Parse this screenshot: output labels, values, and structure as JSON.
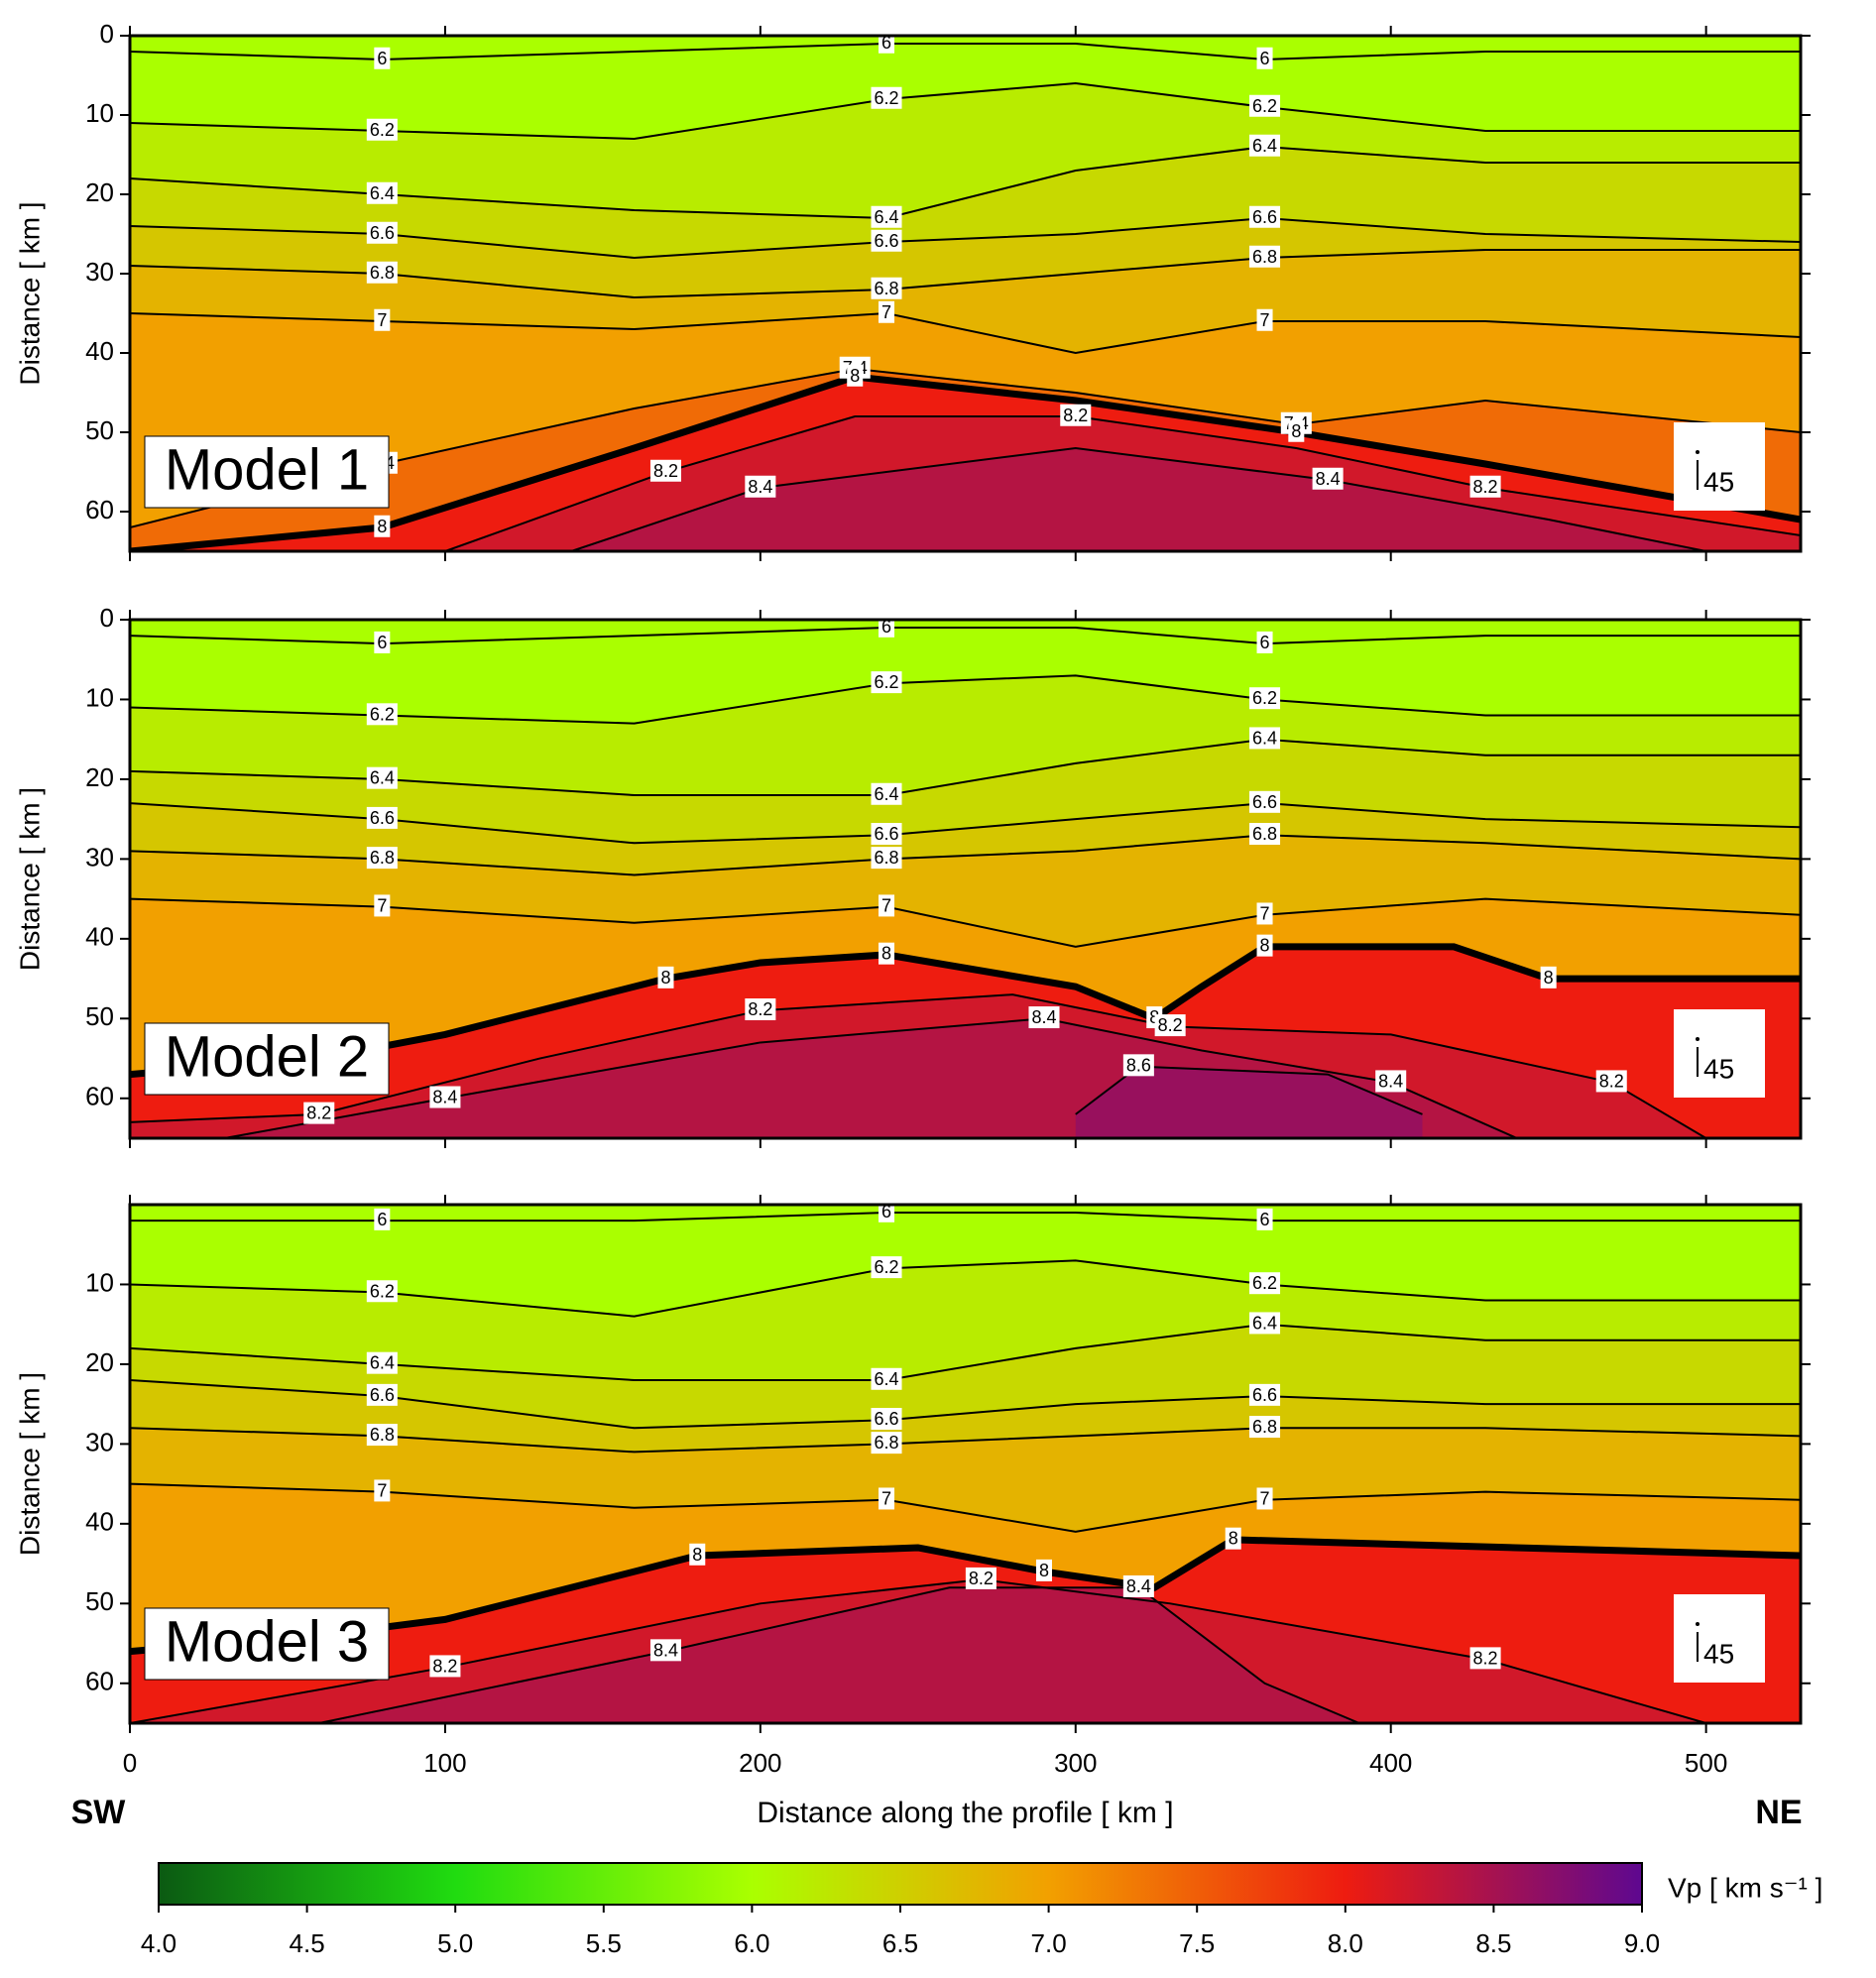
{
  "chart_data": [
    {
      "type": "contour",
      "model_label": "Model 1",
      "y_label": "Distance [ km ]",
      "inset_label": 45,
      "xlim": [
        0,
        530
      ],
      "xticks": [
        0,
        100,
        200,
        300,
        400,
        500
      ],
      "show_xtick_labels": false,
      "ylim": [
        0,
        65
      ],
      "yticks": [
        0,
        10,
        20,
        30,
        40,
        50,
        60
      ],
      "y_reversed": true,
      "contours": [
        {
          "level": 6,
          "x": [
            0,
            80,
            160,
            240,
            300,
            360,
            430,
            530
          ],
          "y": [
            2,
            3,
            2,
            1,
            1,
            3,
            2,
            2
          ]
        },
        {
          "level": 6.2,
          "x": [
            0,
            80,
            160,
            240,
            300,
            360,
            430,
            530
          ],
          "y": [
            11,
            12,
            13,
            8,
            6,
            9,
            12,
            12
          ]
        },
        {
          "level": 6.4,
          "x": [
            0,
            80,
            160,
            240,
            300,
            360,
            430,
            530
          ],
          "y": [
            18,
            20,
            22,
            23,
            17,
            14,
            16,
            16
          ]
        },
        {
          "level": 6.6,
          "x": [
            0,
            80,
            160,
            240,
            300,
            360,
            430,
            530
          ],
          "y": [
            24,
            25,
            28,
            26,
            25,
            23,
            25,
            26
          ]
        },
        {
          "level": 6.8,
          "x": [
            0,
            80,
            160,
            240,
            300,
            360,
            430,
            530
          ],
          "y": [
            29,
            30,
            33,
            32,
            30,
            28,
            27,
            27
          ]
        },
        {
          "level": 7,
          "x": [
            0,
            80,
            160,
            240,
            300,
            360,
            430,
            530
          ],
          "y": [
            35,
            36,
            37,
            35,
            40,
            36,
            36,
            38
          ]
        },
        {
          "level": 7.4,
          "x": [
            0,
            80,
            160,
            230,
            300,
            370,
            430,
            530
          ],
          "y": [
            62,
            54,
            47,
            42,
            45,
            49,
            46,
            50
          ]
        },
        {
          "level": 8,
          "boundary": true,
          "x": [
            0,
            80,
            160,
            230,
            300,
            370,
            430,
            530
          ],
          "y": [
            65,
            62,
            52,
            43,
            46,
            50,
            54,
            61
          ]
        },
        {
          "level": 8.2,
          "x": [
            100,
            170,
            230,
            300,
            370,
            430,
            530
          ],
          "y": [
            65,
            55,
            48,
            48,
            52,
            57,
            63
          ]
        },
        {
          "level": 8.4,
          "x": [
            140,
            200,
            300,
            380,
            450,
            500
          ],
          "y": [
            65,
            57,
            52,
            56,
            61,
            65
          ]
        }
      ]
    },
    {
      "type": "contour",
      "model_label": "Model 2",
      "y_label": "Distance [ km ]",
      "inset_label": 45,
      "xlim": [
        0,
        530
      ],
      "xticks": [
        0,
        100,
        200,
        300,
        400,
        500
      ],
      "show_xtick_labels": false,
      "ylim": [
        0,
        65
      ],
      "yticks": [
        0,
        10,
        20,
        30,
        40,
        50,
        60
      ],
      "y_reversed": true,
      "contours": [
        {
          "level": 6,
          "x": [
            0,
            80,
            160,
            240,
            300,
            360,
            430,
            530
          ],
          "y": [
            2,
            3,
            2,
            1,
            1,
            3,
            2,
            2
          ]
        },
        {
          "level": 6.2,
          "x": [
            0,
            80,
            160,
            240,
            300,
            360,
            430,
            530
          ],
          "y": [
            11,
            12,
            13,
            8,
            7,
            10,
            12,
            12
          ]
        },
        {
          "level": 6.4,
          "x": [
            0,
            80,
            160,
            240,
            300,
            360,
            430,
            530
          ],
          "y": [
            19,
            20,
            22,
            22,
            18,
            15,
            17,
            17
          ]
        },
        {
          "level": 6.6,
          "x": [
            0,
            80,
            160,
            240,
            300,
            360,
            430,
            530
          ],
          "y": [
            23,
            25,
            28,
            27,
            25,
            23,
            25,
            26
          ]
        },
        {
          "level": 6.8,
          "x": [
            0,
            80,
            160,
            240,
            300,
            360,
            430,
            530
          ],
          "y": [
            29,
            30,
            32,
            30,
            29,
            27,
            28,
            30
          ]
        },
        {
          "level": 7,
          "x": [
            0,
            80,
            160,
            240,
            300,
            360,
            430,
            530
          ],
          "y": [
            35,
            36,
            38,
            36,
            41,
            37,
            35,
            37
          ]
        },
        {
          "level": 8,
          "boundary": true,
          "x": [
            0,
            60,
            100,
            170,
            200,
            240,
            300,
            325,
            340,
            360,
            420,
            450,
            530
          ],
          "y": [
            57,
            55,
            52,
            45,
            43,
            42,
            46,
            50,
            46,
            41,
            41,
            45,
            45
          ]
        },
        {
          "level": 8.2,
          "x": [
            0,
            60,
            130,
            200,
            280,
            330,
            400,
            470,
            500,
            530
          ],
          "y": [
            63,
            62,
            55,
            49,
            47,
            51,
            52,
            58,
            65,
            66
          ]
        },
        {
          "level": 8.4,
          "x": [
            30,
            100,
            200,
            290,
            340,
            400,
            440
          ],
          "y": [
            65,
            60,
            53,
            50,
            54,
            58,
            65
          ]
        },
        {
          "level": 8.6,
          "x": [
            300,
            320,
            380,
            410
          ],
          "y": [
            62,
            56,
            57,
            62
          ]
        }
      ]
    },
    {
      "type": "contour",
      "model_label": "Model 3",
      "y_label": "Distance [ km ]",
      "inset_label": 45,
      "xlim": [
        0,
        530
      ],
      "xticks": [
        0,
        100,
        200,
        300,
        400,
        500
      ],
      "show_xtick_labels": true,
      "ylim": [
        0,
        65
      ],
      "yticks": [
        10,
        20,
        30,
        40,
        50,
        60
      ],
      "y_reversed": true,
      "contours": [
        {
          "level": 6,
          "x": [
            0,
            80,
            160,
            240,
            300,
            360,
            430,
            530
          ],
          "y": [
            2,
            2,
            2,
            1,
            1,
            2,
            2,
            2
          ]
        },
        {
          "level": 6.2,
          "x": [
            0,
            80,
            160,
            240,
            300,
            360,
            430,
            530
          ],
          "y": [
            10,
            11,
            14,
            8,
            7,
            10,
            12,
            12
          ]
        },
        {
          "level": 6.4,
          "x": [
            0,
            80,
            160,
            240,
            300,
            360,
            430,
            530
          ],
          "y": [
            18,
            20,
            22,
            22,
            18,
            15,
            17,
            17
          ]
        },
        {
          "level": 6.6,
          "x": [
            0,
            80,
            160,
            240,
            300,
            360,
            430,
            530
          ],
          "y": [
            22,
            24,
            28,
            27,
            25,
            24,
            25,
            25
          ]
        },
        {
          "level": 6.8,
          "x": [
            0,
            80,
            160,
            240,
            300,
            360,
            430,
            530
          ],
          "y": [
            28,
            29,
            31,
            30,
            29,
            28,
            28,
            29
          ]
        },
        {
          "level": 7,
          "x": [
            0,
            80,
            160,
            240,
            300,
            360,
            430,
            530
          ],
          "y": [
            35,
            36,
            38,
            37,
            41,
            37,
            36,
            37
          ]
        },
        {
          "level": 8,
          "boundary": true,
          "x": [
            0,
            60,
            100,
            180,
            250,
            290,
            325,
            350,
            530
          ],
          "y": [
            56,
            54,
            52,
            44,
            43,
            46,
            48,
            42,
            44
          ]
        },
        {
          "level": 8.2,
          "x": [
            0,
            100,
            200,
            270,
            330,
            430,
            500
          ],
          "y": [
            65,
            58,
            50,
            47,
            50,
            57,
            65
          ]
        },
        {
          "level": 8.4,
          "x": [
            60,
            170,
            260,
            320,
            360,
            390
          ],
          "y": [
            65,
            56,
            48,
            48,
            60,
            65
          ]
        }
      ]
    }
  ],
  "x_label": "Distance  along the profile [ km ]",
  "left_label": "SW",
  "right_label": "NE",
  "colorbar": {
    "label": "Vp [ km s⁻¹ ]",
    "lim": [
      4,
      9
    ],
    "ticks": [
      {
        "value": 4,
        "label": "4.0"
      },
      {
        "value": 4.5,
        "label": "4.5"
      },
      {
        "value": 5,
        "label": "5.0"
      },
      {
        "value": 5.5,
        "label": "5.5"
      },
      {
        "value": 6,
        "label": "6.0"
      },
      {
        "value": 6.5,
        "label": "6.5"
      },
      {
        "value": 7,
        "label": "7.0"
      },
      {
        "value": 7.5,
        "label": "7.5"
      },
      {
        "value": 8,
        "label": "8.0"
      },
      {
        "value": 8.5,
        "label": "8.5"
      },
      {
        "value": 9,
        "label": "9.0"
      }
    ],
    "colorscale": [
      [
        4,
        "#0b5a12"
      ],
      [
        5,
        "#20dc10"
      ],
      [
        6,
        "#aaff00"
      ],
      [
        7,
        "#f2a000"
      ],
      [
        8,
        "#ee1c10"
      ],
      [
        9,
        "#5e0890"
      ]
    ]
  }
}
